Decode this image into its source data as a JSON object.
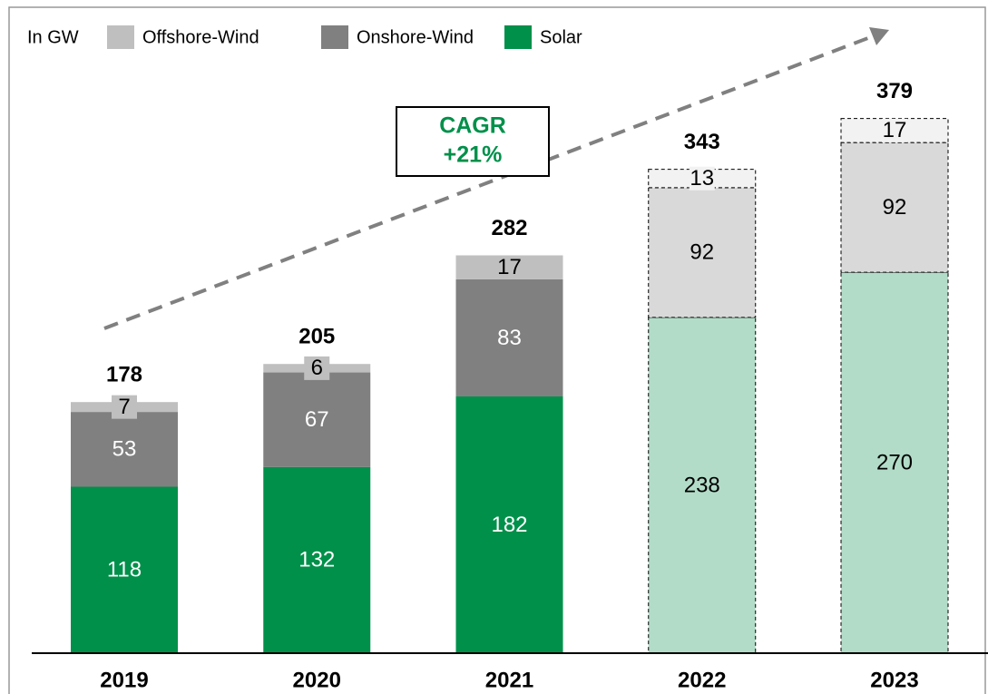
{
  "chart_data": {
    "type": "stacked_bar",
    "unit_label": "In GW",
    "categories": [
      "2019",
      "2020",
      "2021",
      "2022",
      "2023"
    ],
    "series": [
      {
        "name": "Offshore-Wind",
        "color": "#bfbfbf",
        "point_colors": [
          "#bfbfbf",
          "#bfbfbf",
          "#bfbfbf",
          "#f2f2f2",
          "#f2f2f2"
        ],
        "values": [
          7,
          6,
          17,
          13,
          17
        ]
      },
      {
        "name": "Onshore-Wind",
        "color": "#808080",
        "point_colors": [
          "#808080",
          "#808080",
          "#808080",
          "#d9d9d9",
          "#d9d9d9"
        ],
        "values": [
          53,
          67,
          83,
          92,
          92
        ]
      },
      {
        "name": "Solar",
        "color": "#00904a",
        "point_colors": [
          "#00904a",
          "#00904a",
          "#00904a",
          "#b2dcc8",
          "#b2dcc8"
        ],
        "values": [
          118,
          132,
          182,
          238,
          270
        ]
      }
    ],
    "totals": [
      178,
      205,
      282,
      343,
      379
    ],
    "dashed": [
      false,
      false,
      false,
      true,
      true
    ],
    "annotation": [
      "CAGR",
      "+21%"
    ],
    "annotation_color": "#00904a"
  }
}
